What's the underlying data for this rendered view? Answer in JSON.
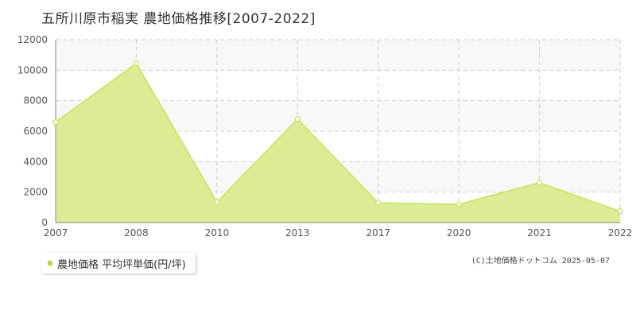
{
  "title": "五所川原市稲実 農地価格推移[2007-2022]",
  "legend": {
    "label": "農地価格 平均坪単価(円/坪)"
  },
  "copyright": "(C)土地価格ドットコム 2025-05-07",
  "colors": {
    "area_fill": "#dbec94",
    "line": "#c6e35c",
    "marker_fill": "#ffffff",
    "legend_marker": "#b5d93a",
    "grid": "#cccccc",
    "axis": "#888888",
    "band": "#f8f8f8"
  },
  "chart_data": {
    "type": "area",
    "x": [
      "2007",
      "2008",
      "2010",
      "2013",
      "2017",
      "2020",
      "2021",
      "2022"
    ],
    "y_ticks": [
      "0",
      "2000",
      "4000",
      "6000",
      "8000",
      "10000",
      "12000"
    ],
    "ylim": [
      0,
      12000
    ],
    "series": [
      {
        "name": "農地価格 平均坪単価(円/坪)",
        "values": [
          6600,
          10450,
          1350,
          6800,
          1300,
          1200,
          2620,
          740
        ]
      }
    ],
    "grid": true,
    "xlabel": "",
    "ylabel": ""
  }
}
